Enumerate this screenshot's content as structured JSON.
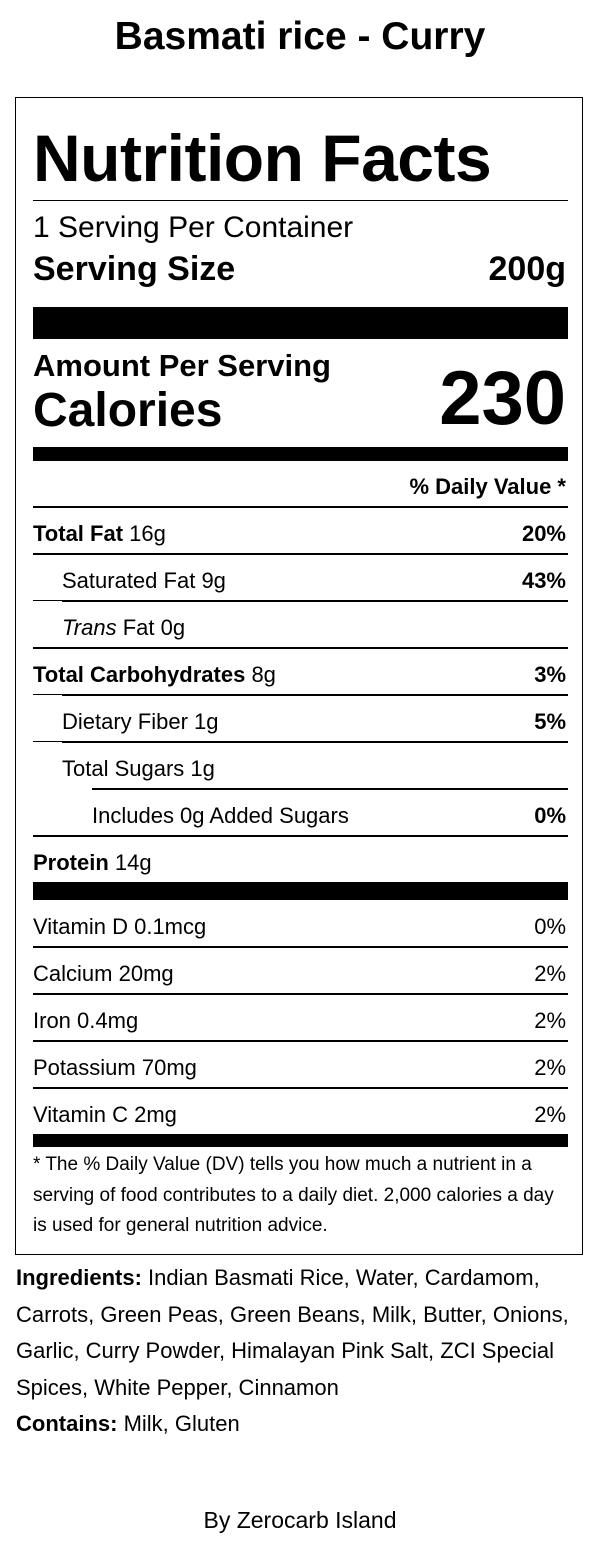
{
  "product_title": "Basmati rice - Curry",
  "label": {
    "heading": "Nutrition Facts",
    "servings_per_container": "1 Serving Per Container",
    "serving_size_label": "Serving Size",
    "serving_size_value": "200g",
    "amount_per_serving": "Amount Per Serving",
    "calories_label": "Calories",
    "calories_value": "230",
    "daily_value_header": "% Daily Value *",
    "nutrients": [
      {
        "name": "Total Fat",
        "amount": "16g",
        "dv": "20%"
      },
      {
        "name": "Saturated Fat",
        "amount": "9g",
        "dv": "43%"
      },
      {
        "name_italic": "Trans",
        "name": "Fat",
        "amount": "0g",
        "dv": ""
      },
      {
        "name": "Total Carbohydrates",
        "amount": "8g",
        "dv": "3%"
      },
      {
        "name": "Dietary Fiber",
        "amount": "1g",
        "dv": "5%"
      },
      {
        "name": "Total Sugars",
        "amount": "1g",
        "dv": ""
      },
      {
        "name": "Includes 0g Added Sugars",
        "amount": "",
        "dv": "0%"
      },
      {
        "name": "Protein",
        "amount": "14g",
        "dv": ""
      }
    ],
    "vitamins": [
      {
        "name": "Vitamin D",
        "amount": "0.1mcg",
        "dv": "0%"
      },
      {
        "name": "Calcium",
        "amount": "20mg",
        "dv": "2%"
      },
      {
        "name": "Iron",
        "amount": "0.4mg",
        "dv": "2%"
      },
      {
        "name": "Potassium",
        "amount": "70mg",
        "dv": "2%"
      },
      {
        "name": "Vitamin C",
        "amount": "2mg",
        "dv": "2%"
      }
    ],
    "footnote": "* The % Daily Value (DV) tells you how much a nutrient in a serving of food contributes to a daily diet. 2,000 calories a day is used for general nutrition advice."
  },
  "ingredients": {
    "label": "Ingredients:",
    "text": "Indian Basmati Rice, Water, Cardamom, Carrots, Green Peas, Green Beans, Milk, Butter, Onions, Garlic, Curry Powder, Himalayan Pink Salt, ZCI Special Spices, White Pepper, Cinnamon"
  },
  "contains": {
    "label": "Contains:",
    "text": "Milk, Gluten"
  },
  "byline": "By Zerocarb Island"
}
